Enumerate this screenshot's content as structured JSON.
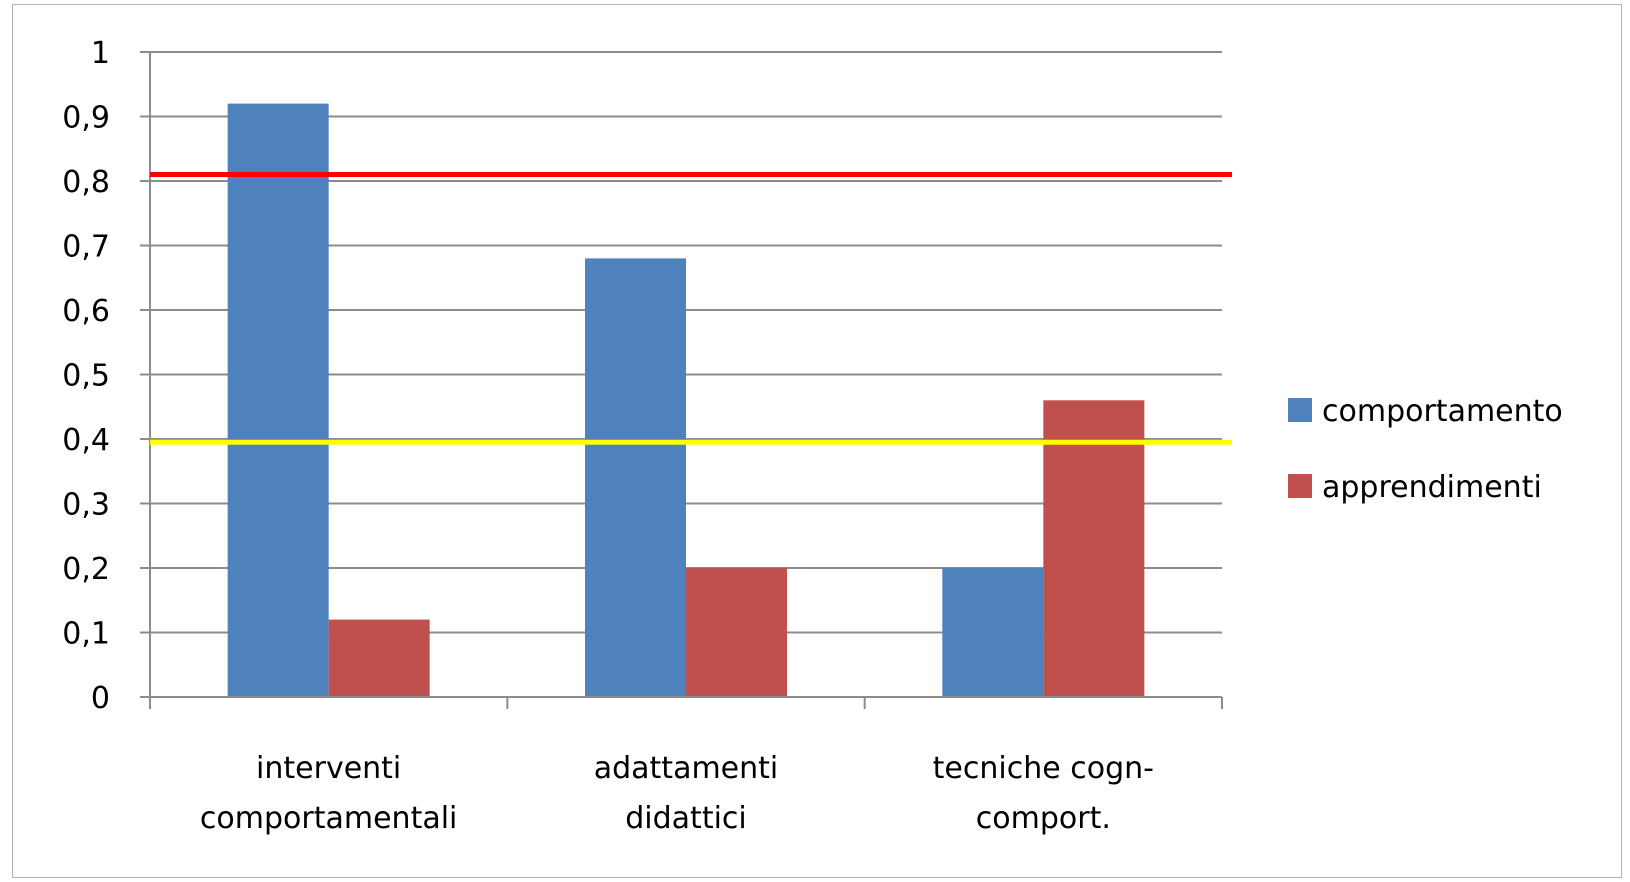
{
  "chart_data": {
    "type": "bar",
    "title": "",
    "xlabel": "",
    "ylabel": "",
    "categories": [
      [
        "interventi",
        "comportamentali"
      ],
      [
        "adattamenti",
        "didattici"
      ],
      [
        "tecniche cogn-",
        "comport."
      ]
    ],
    "series": [
      {
        "name": "comportamento",
        "color": "#4f81bd",
        "values": [
          0.92,
          0.68,
          0.2
        ]
      },
      {
        "name": "apprendimenti",
        "color": "#c0504d",
        "values": [
          0.12,
          0.2,
          0.46
        ]
      }
    ],
    "ylim": [
      0,
      1
    ],
    "yticks": [
      0,
      0.1,
      0.2,
      0.3,
      0.4,
      0.5,
      0.6,
      0.7,
      0.8,
      0.9,
      1
    ],
    "ytick_labels": [
      "0",
      "0,1",
      "0,2",
      "0,3",
      "0,4",
      "0,5",
      "0,6",
      "0,7",
      "0,8",
      "0,9",
      "1"
    ],
    "grid": true,
    "legend_position": "right",
    "reference_lines": [
      {
        "value": 0.81,
        "color": "#ff0000"
      },
      {
        "value": 0.395,
        "color": "#ffff00"
      }
    ]
  }
}
